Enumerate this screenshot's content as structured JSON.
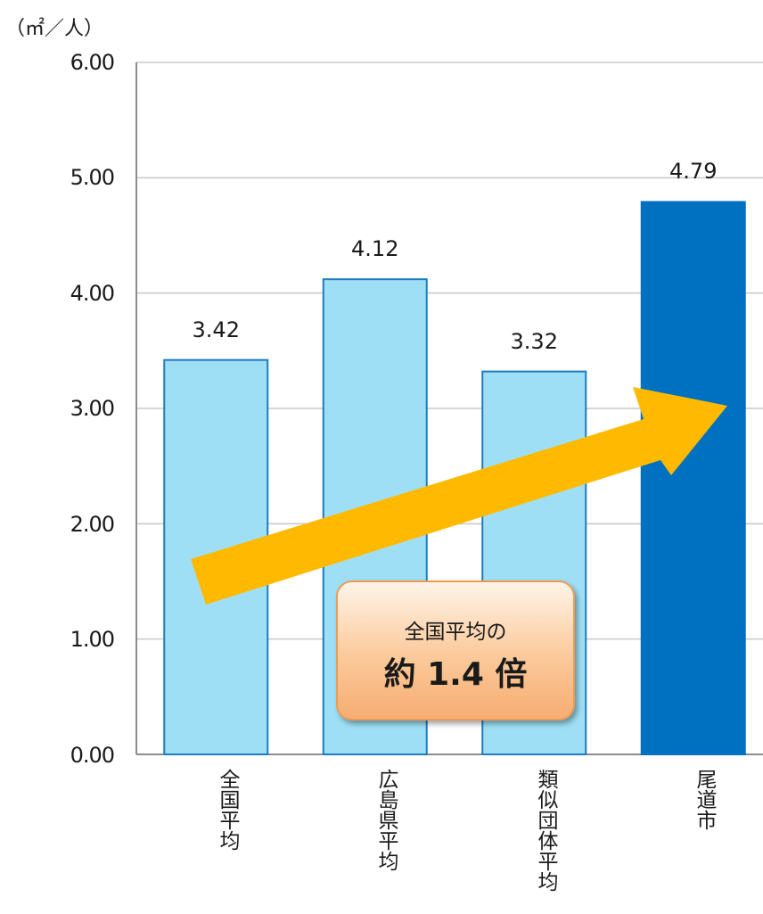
{
  "chart_data": {
    "type": "bar",
    "title": "",
    "unit_label": "（㎡／人）",
    "categories": [
      "全国平均",
      "広島県平均",
      "類似団体平均",
      "尾道市"
    ],
    "values": [
      3.42,
      4.12,
      3.32,
      4.79
    ],
    "value_labels": [
      "3.42",
      "4.12",
      "3.32",
      "4.79"
    ],
    "ylim": [
      0,
      6
    ],
    "yticks": [
      "0.00",
      "1.00",
      "2.00",
      "3.00",
      "4.00",
      "5.00",
      "6.00"
    ],
    "grid": true,
    "colors": {
      "normal": "#9edff5",
      "normal_border": "#1f7bbf",
      "highlight": "#0070c0",
      "arrow": "#ffba00"
    },
    "annotation": {
      "line1": "全国平均の",
      "line2": "約 1.4 倍"
    }
  }
}
